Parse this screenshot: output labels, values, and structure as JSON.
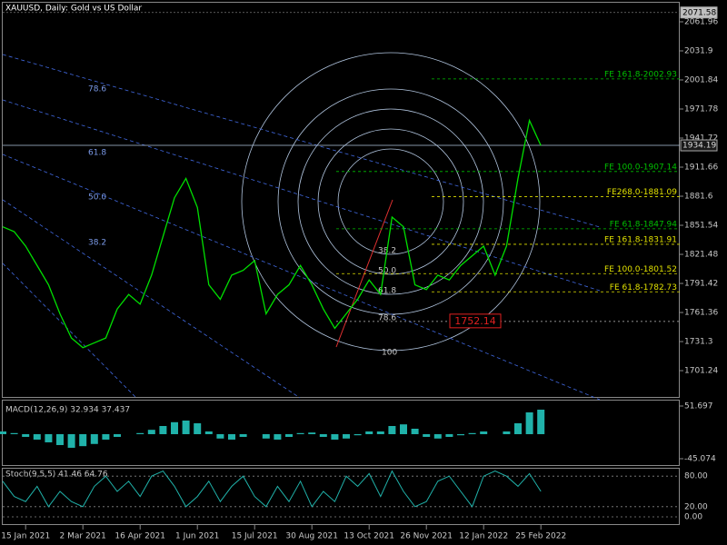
{
  "chart_data": {
    "type": "line",
    "title": "XAUUSD, Daily: Gold vs US Dollar",
    "categories": [
      null,
      null,
      "15 Jan 2021",
      null,
      null,
      null,
      null,
      "2 Mar 2021",
      null,
      null,
      null,
      null,
      "16 Apr 2021",
      null,
      null,
      null,
      null,
      "1 Jun 2021",
      null,
      null,
      null,
      null,
      "15 Jul 2021",
      null,
      null,
      null,
      null,
      "30 Aug 2021",
      null,
      null,
      null,
      null,
      "13 Oct 2021",
      null,
      null,
      null,
      null,
      "26 Nov 2021",
      null,
      null,
      null,
      null,
      "12 Jan 2022",
      null,
      null,
      null,
      null,
      "25 Feb 2022"
    ],
    "values": [
      1850,
      1845,
      1830,
      1810,
      1790,
      1760,
      1735,
      1725,
      1730,
      1735,
      1765,
      1780,
      1770,
      1800,
      1840,
      1880,
      1900,
      1870,
      1790,
      1775,
      1800,
      1805,
      1815,
      1760,
      1780,
      1790,
      1810,
      1790,
      1765,
      1745,
      1760,
      1775,
      1795,
      1780,
      1860,
      1850,
      1790,
      1785,
      1800,
      1795,
      1810,
      1820,
      1830,
      1800,
      1830,
      1900,
      1960,
      1934
    ],
    "color": "#00e000",
    "ylim": [
      1673.1,
      2084.5
    ],
    "yticks": [
      2061.96,
      2031.9,
      2001.84,
      1971.78,
      1941.72,
      1911.66,
      1881.6,
      1851.54,
      1821.48,
      1791.42,
      1761.36,
      1731.3,
      1701.24
    ],
    "price_markers": [
      {
        "value": 2071.58,
        "color": "#c0c0c0"
      },
      {
        "value": 1934.19,
        "color": "#1a1a1a"
      }
    ],
    "fib_levels": [
      {
        "label": "FE 161.8-2002.93",
        "value": 2002.93,
        "color": "#00c000"
      },
      {
        "label": "FE 100.0-1907.14",
        "value": 1907.14,
        "color": "#00c000"
      },
      {
        "label": "FE268.0-1881.09",
        "value": 1881.09,
        "color": "#e0e000"
      },
      {
        "label": "FE 61.8-1847.94",
        "value": 1847.94,
        "color": "#00c000"
      },
      {
        "label": "FE 161.8-1831.91",
        "value": 1831.91,
        "color": "#e0e000"
      },
      {
        "label": "FE 100.0-1801.52",
        "value": 1801.52,
        "color": "#e0e000"
      },
      {
        "label": "FE 61.8-1782.73",
        "value": 1782.73,
        "color": "#e0e000"
      }
    ],
    "red_marker": 1752.14,
    "fan_labels": [
      "78.6",
      "61.8",
      "50.0",
      "38.2"
    ],
    "circle_labels": [
      "38.2",
      "50.0",
      "61.8",
      "78.6",
      "100"
    ],
    "macd": {
      "label": "MACD(12,26,9) 32.934 37.437",
      "values": [
        5,
        2,
        -5,
        -10,
        -15,
        -20,
        -25,
        -22,
        -18,
        -10,
        -5,
        0,
        2,
        8,
        15,
        22,
        25,
        20,
        5,
        -8,
        -10,
        -5,
        0,
        -8,
        -10,
        -5,
        2,
        3,
        -5,
        -10,
        -8,
        -2,
        5,
        5,
        15,
        18,
        10,
        -5,
        -8,
        -5,
        -2,
        2,
        5,
        0,
        5,
        20,
        40,
        45
      ],
      "ylim": [
        -45.074,
        51.697
      ],
      "yticks": [
        51.697,
        -45.074
      ],
      "color": "#20b2aa"
    },
    "stoch": {
      "label": "Stoch(9,5,5) 41.46 64.76",
      "values": [
        70,
        40,
        30,
        60,
        20,
        50,
        30,
        20,
        60,
        80,
        50,
        70,
        40,
        80,
        90,
        60,
        20,
        40,
        70,
        30,
        60,
        80,
        40,
        20,
        60,
        30,
        70,
        20,
        50,
        30,
        80,
        60,
        85,
        40,
        90,
        50,
        20,
        30,
        70,
        80,
        50,
        20,
        80,
        90,
        80,
        60,
        85,
        50
      ],
      "ylim": [
        0,
        100
      ],
      "yticks": [
        {
          "value": 80,
          "label": "80.00"
        },
        {
          "value": 20,
          "label": "20.00"
        },
        {
          "value": 0,
          "label": "0.00"
        }
      ],
      "color": "#20b2aa"
    }
  }
}
